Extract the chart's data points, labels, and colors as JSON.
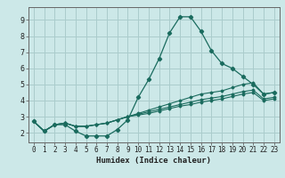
{
  "title": "",
  "xlabel": "Humidex (Indice chaleur)",
  "bg_color": "#cce8e8",
  "grid_color": "#aacccc",
  "line_color": "#1a6b5e",
  "xlim": [
    -0.5,
    23.5
  ],
  "ylim": [
    1.4,
    9.8
  ],
  "xticks": [
    0,
    1,
    2,
    3,
    4,
    5,
    6,
    7,
    8,
    9,
    10,
    11,
    12,
    13,
    14,
    15,
    16,
    17,
    18,
    19,
    20,
    21,
    22,
    23
  ],
  "yticks": [
    2,
    3,
    4,
    5,
    6,
    7,
    8,
    9
  ],
  "series": [
    [
      2.7,
      2.1,
      2.5,
      2.5,
      2.1,
      1.8,
      1.8,
      1.8,
      2.2,
      2.8,
      4.2,
      5.3,
      6.6,
      8.2,
      9.2,
      9.2,
      8.3,
      7.1,
      6.3,
      6.0,
      5.5,
      5.0,
      4.4,
      4.5
    ],
    [
      2.7,
      2.1,
      2.5,
      2.6,
      2.4,
      2.4,
      2.5,
      2.6,
      2.8,
      3.0,
      3.2,
      3.4,
      3.6,
      3.8,
      4.0,
      4.2,
      4.4,
      4.5,
      4.6,
      4.8,
      5.0,
      5.1,
      4.4,
      4.5
    ],
    [
      2.7,
      2.1,
      2.5,
      2.6,
      2.4,
      2.4,
      2.5,
      2.6,
      2.8,
      3.0,
      3.15,
      3.3,
      3.45,
      3.6,
      3.75,
      3.9,
      4.05,
      4.15,
      4.25,
      4.4,
      4.55,
      4.65,
      4.1,
      4.2
    ],
    [
      2.7,
      2.1,
      2.5,
      2.6,
      2.4,
      2.4,
      2.5,
      2.6,
      2.8,
      3.0,
      3.1,
      3.2,
      3.35,
      3.5,
      3.65,
      3.75,
      3.9,
      4.0,
      4.1,
      4.25,
      4.4,
      4.5,
      4.0,
      4.1
    ]
  ],
  "font_size_x": 5.5,
  "font_size_y": 6.0,
  "font_size_label": 6.5
}
